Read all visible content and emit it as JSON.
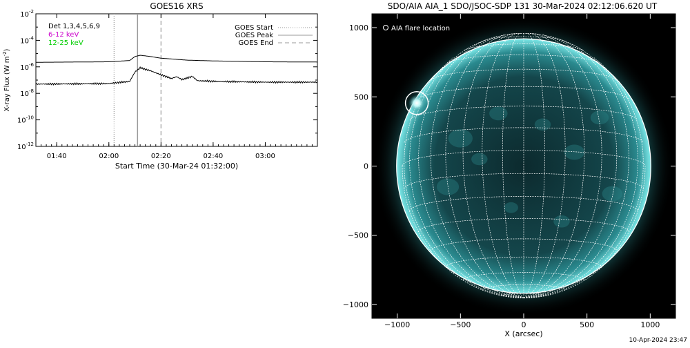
{
  "footer_timestamp": "10-Apr-2024 23:47",
  "chart_data": [
    {
      "type": "line",
      "title": "GOES16 XRS",
      "xlabel": "Start Time (30-Mar-24 01:32:00)",
      "ylabel_main": "X-ray Flux (W m",
      "ylabel_sup": "-2",
      "ylabel_close": ")",
      "y_scale": "log",
      "x_range": [
        "01:32:00",
        "03:20:00"
      ],
      "ylim": [
        1e-12,
        0.01
      ],
      "x_ticks": [
        "01:40",
        "02:00",
        "02:20",
        "02:40",
        "03:00"
      ],
      "y_ticks": [
        {
          "base": "10",
          "exp": "-2",
          "value": 0.01
        },
        {
          "base": "10",
          "exp": "-4",
          "value": 0.0001
        },
        {
          "base": "10",
          "exp": "-6",
          "value": 1e-06
        },
        {
          "base": "10",
          "exp": "-8",
          "value": 1e-08
        },
        {
          "base": "10",
          "exp": "-10",
          "value": 1e-10
        },
        {
          "base": "10",
          "exp": "-12",
          "value": 1e-12
        }
      ],
      "detectors_label": "Det 1,3,4,5,6,9",
      "series": [
        {
          "name": "6-12 keV",
          "color": "#cc00cc",
          "x": [
            "01:32",
            "02:00",
            "02:08",
            "02:10",
            "02:12",
            "02:16",
            "02:20",
            "02:30",
            "02:40",
            "03:00",
            "03:20"
          ],
          "y": [
            2.2e-06,
            2.4e-06,
            3e-06,
            6e-06,
            7.5e-06,
            6e-06,
            4.5e-06,
            3.2e-06,
            2.8e-06,
            2.4e-06,
            2.3e-06
          ]
        },
        {
          "name": "12-25 keV",
          "color": "#00cc00",
          "x": [
            "01:32",
            "02:00",
            "02:08",
            "02:10",
            "02:12",
            "02:16",
            "02:20",
            "02:24",
            "02:26",
            "02:28",
            "02:30",
            "02:32",
            "02:34",
            "02:40",
            "03:00",
            "03:20"
          ],
          "y": [
            5e-08,
            5.5e-08,
            8e-08,
            4e-07,
            8.5e-07,
            5e-07,
            2.5e-07,
            1.3e-07,
            1.8e-07,
            1.1e-07,
            1.4e-07,
            1.9e-07,
            9e-08,
            8e-08,
            7e-08,
            7e-08
          ]
        }
      ],
      "legend": {
        "placement": "top-right",
        "entries": [
          {
            "label": "GOES Start",
            "style": "dotted"
          },
          {
            "label": "GOES Peak",
            "style": "solid"
          },
          {
            "label": "GOES End",
            "style": "dashed"
          }
        ]
      },
      "event_lines": [
        {
          "time": "02:02",
          "style": "dotted",
          "color": "#999999"
        },
        {
          "time": "02:11",
          "style": "solid",
          "color": "#999999"
        },
        {
          "time": "02:20",
          "style": "dashed",
          "color": "#999999"
        }
      ]
    },
    {
      "type": "image",
      "title": "SDO/AIA AIA_1 SDO/JSOC-SDP 131 30-Mar-2024 02:12:06.620 UT",
      "xlabel": "X (arcsec)",
      "ylabel": "",
      "xlim": [
        -1200,
        1200
      ],
      "ylim": [
        -1100,
        1100
      ],
      "x_ticks": [
        -1000,
        -500,
        0,
        500,
        1000
      ],
      "y_ticks": [
        1000,
        500,
        0,
        -500,
        -1000
      ],
      "x_tick_labels": [
        "−1000",
        "−500",
        "0",
        "500",
        "1000"
      ],
      "y_tick_labels": [
        "1000",
        "500",
        "0",
        "−500",
        "−1000"
      ],
      "legend_text": "AIA flare location",
      "solar_radius_arcsec": 960,
      "grid_spacing_deg": 10,
      "flare_location_arcsec": [
        -845,
        455
      ],
      "flare_circle_radius_arcsec": 90,
      "colors": {
        "background": "#000000",
        "disk": "#1f6a70",
        "limb": "#7ce8e8",
        "grid": "#ffffff"
      }
    }
  ]
}
